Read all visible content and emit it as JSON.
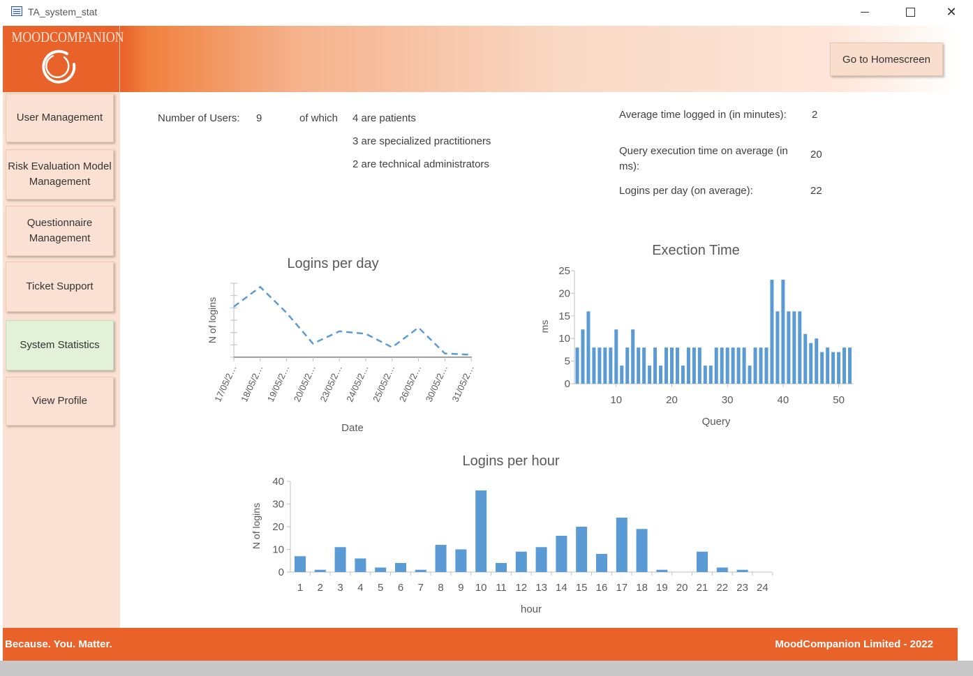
{
  "window": {
    "title": "TA_system_stat"
  },
  "brand": {
    "logo_text": "MOODCOMPANION",
    "accent": "#e8622a"
  },
  "header": {
    "home_button": "Go to Homescreen"
  },
  "sidebar": {
    "items": [
      {
        "label": "User Management",
        "active": false
      },
      {
        "label": "Risk Evaluation Model Management",
        "active": false
      },
      {
        "label": "Questionnaire Management",
        "active": false
      },
      {
        "label": "Ticket Support",
        "active": false
      },
      {
        "label": "System Statistics",
        "active": true
      },
      {
        "label": "View Profile",
        "active": false
      }
    ]
  },
  "stats": {
    "users_label": "Number of Users:",
    "users_value": "9",
    "of_which": "of which",
    "patients": "4 are patients",
    "practitioners": "3 are specialized practitioners",
    "admins": "2 are technical administrators",
    "avg_time_label": "Average time logged in (in minutes):",
    "avg_time_value": "2",
    "query_time_label": "Query execution time on average (in ms):",
    "query_time_value": "20",
    "logins_day_label": "Logins per day (on average):",
    "logins_day_value": "22"
  },
  "footer": {
    "tagline": "Because. You. Matter.",
    "company": "MoodCompanion Limited - 2022"
  },
  "chart_data": [
    {
      "type": "line",
      "title": "Logins per day",
      "xlabel": "Date",
      "ylabel": "N of logins",
      "categories": [
        "17/05/2…",
        "18/05/2…",
        "19/05/2…",
        "20/05/2…",
        "23/05/2…",
        "24/05/2…",
        "25/05/2…",
        "26/05/2…",
        "30/05/2…",
        "31/05/2…"
      ],
      "values": [
        41,
        57,
        36,
        11,
        21,
        19,
        8,
        24,
        3,
        2
      ],
      "ylim": [
        0,
        60
      ],
      "style": "dashed",
      "color": "#5b9bd5"
    },
    {
      "type": "bar",
      "title": "Exection Time",
      "xlabel": "Query",
      "ylabel": "ms",
      "x": [
        3,
        4,
        5,
        6,
        7,
        8,
        9,
        10,
        11,
        12,
        13,
        14,
        15,
        16,
        17,
        18,
        19,
        20,
        21,
        22,
        23,
        24,
        25,
        26,
        27,
        28,
        29,
        30,
        31,
        32,
        33,
        34,
        35,
        36,
        37,
        38,
        39,
        40,
        41,
        42,
        43,
        44,
        45,
        46,
        47,
        48,
        49,
        50,
        51,
        52
      ],
      "values": [
        8,
        12,
        16,
        8,
        8,
        8,
        8,
        12,
        4,
        8,
        12,
        8,
        8,
        4,
        8,
        4,
        8,
        8,
        8,
        4,
        8,
        8,
        8,
        4,
        4,
        8,
        8,
        8,
        8,
        8,
        8,
        4,
        8,
        8,
        8,
        23,
        16,
        23,
        16,
        16,
        16,
        11,
        9,
        10,
        7,
        8,
        7,
        7,
        8,
        8
      ],
      "xticks": [
        10,
        20,
        30,
        40,
        50
      ],
      "yticks": [
        0,
        5,
        10,
        15,
        20,
        25
      ],
      "ylim": [
        0,
        25
      ],
      "color": "#5b9bd5"
    },
    {
      "type": "bar",
      "title": "Logins per hour",
      "xlabel": "hour",
      "ylabel": "N of logins",
      "categories": [
        "1",
        "2",
        "3",
        "4",
        "5",
        "6",
        "7",
        "8",
        "9",
        "10",
        "11",
        "12",
        "13",
        "14",
        "15",
        "16",
        "17",
        "18",
        "19",
        "20",
        "21",
        "22",
        "23",
        "24"
      ],
      "values": [
        7,
        1,
        11,
        6,
        2,
        4,
        1,
        12,
        10,
        36,
        4,
        9,
        11,
        16,
        20,
        8,
        24,
        19,
        1,
        0,
        9,
        2,
        1,
        0
      ],
      "yticks": [
        0,
        10,
        20,
        30,
        40
      ],
      "ylim": [
        0,
        40
      ],
      "color": "#5b9bd5"
    }
  ]
}
